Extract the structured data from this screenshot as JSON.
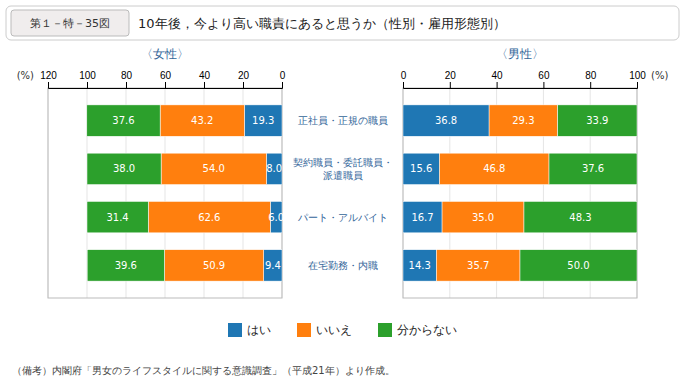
{
  "chart_data": [
    {
      "type": "bar",
      "orientation": "horizontal",
      "stacked": true,
      "data_labels": true,
      "grid": true,
      "legend": "bottom",
      "title": "〈女性〉",
      "xlabel": "(%)",
      "annotations": [
        "第１－特－35図",
        "10年後，今より高い職責にあると思うか（性別・雇用形態別）",
        "（備考）内閣府「男女のライフスタイルに関する意識調査」（平成21年）より作成。"
      ],
      "categories": [
        "正社員・正規の職員",
        "契約職員・委託職員・\n派遣職員",
        "パート・アルバイト",
        "在宅勤務・内職"
      ],
      "series": [
        {
          "name": "はい",
          "values": [
            19.3,
            8.0,
            6.0,
            9.4
          ],
          "value_labels": [
            "19.3",
            "8.0",
            "6.0",
            "9.4"
          ]
        },
        {
          "name": "いいえ",
          "values": [
            43.2,
            54.0,
            62.6,
            50.9
          ],
          "value_labels": [
            "43.2",
            "54.0",
            "62.6",
            "50.9"
          ]
        },
        {
          "name": "分からない",
          "values": [
            37.6,
            38.0,
            31.4,
            39.6
          ],
          "value_labels": [
            "37.6",
            "38.0",
            "31.4",
            "39.6"
          ]
        }
      ],
      "xlim": [
        120,
        0
      ],
      "xticks": [
        0,
        20,
        40,
        60,
        80,
        100,
        120
      ]
    },
    {
      "type": "bar",
      "orientation": "horizontal",
      "stacked": true,
      "data_labels": true,
      "grid": true,
      "title": "〈男性〉",
      "xlabel": "(%)",
      "categories": [
        "正社員・正規の職員",
        "契約職員・委託職員・\n派遣職員",
        "パート・アルバイト",
        "在宅勤務・内職"
      ],
      "series": [
        {
          "name": "はい",
          "values": [
            36.8,
            15.6,
            16.7,
            14.3
          ],
          "value_labels": [
            "36.8",
            "15.6",
            "16.7",
            "14.3"
          ]
        },
        {
          "name": "いいえ",
          "values": [
            29.3,
            46.8,
            35.0,
            35.7
          ],
          "value_labels": [
            "29.3",
            "46.8",
            "35.0",
            "35.7"
          ]
        },
        {
          "name": "分からない",
          "values": [
            33.9,
            37.6,
            48.3,
            50.0
          ],
          "value_labels": [
            "33.9",
            "37.6",
            "48.3",
            "50.0"
          ]
        }
      ],
      "xlim": [
        0,
        100
      ],
      "xticks": [
        0,
        20,
        40,
        60,
        80,
        100
      ]
    }
  ]
}
